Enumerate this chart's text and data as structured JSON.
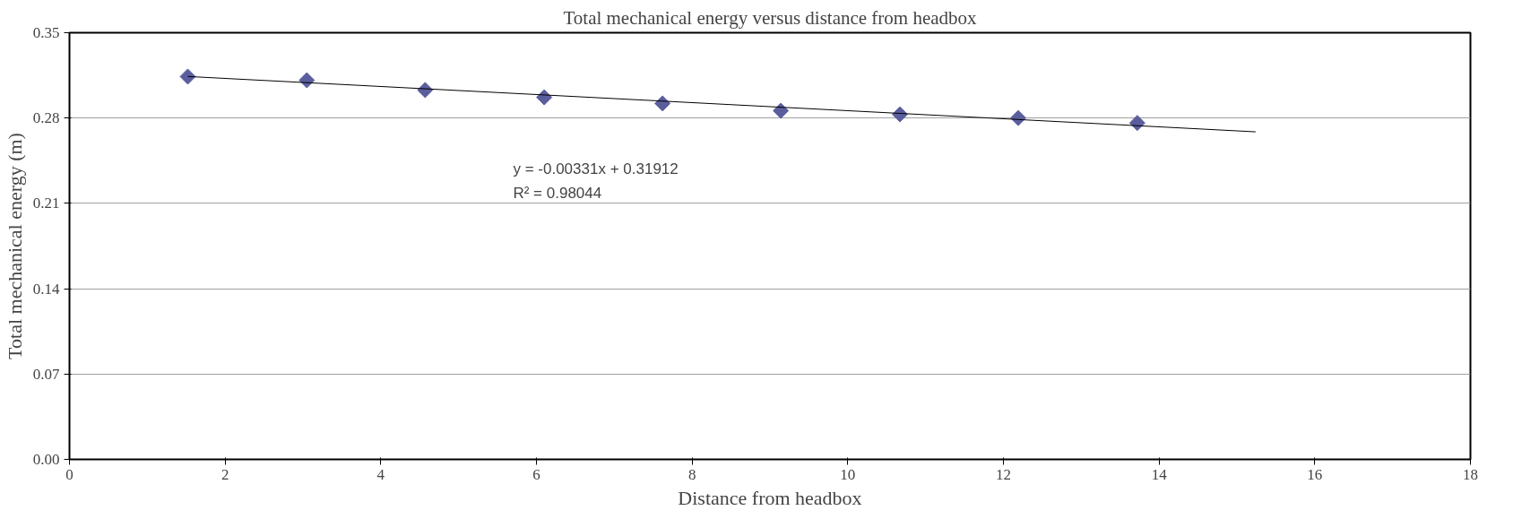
{
  "chart_data": {
    "type": "scatter",
    "title": "Total mechanical energy versus distance from headbox",
    "xlabel": "Distance from headbox",
    "ylabel": "Total mechanical energy (m)",
    "series": [
      {
        "color": "#5b5e9d",
        "marker": "diamond",
        "x": [
          1.52,
          3.05,
          4.57,
          6.1,
          7.62,
          9.14,
          10.67,
          12.19,
          13.72
        ],
        "values": [
          0.314,
          0.311,
          0.303,
          0.297,
          0.292,
          0.286,
          0.283,
          0.28,
          0.276
        ]
      },
      {
        "type": "line",
        "color": "#000000",
        "marker": "none",
        "x": [
          1.52,
          15.24
        ],
        "values": [
          0.3141,
          0.2687
        ]
      }
    ],
    "annotations": [
      "y = -0.00331x + 0.31912\nR² = 0.98044"
    ],
    "xlim": [
      0,
      18
    ],
    "xticks": [
      0,
      2,
      4,
      6,
      8,
      10,
      12,
      14,
      16,
      18
    ],
    "ylim": [
      0,
      0.35
    ],
    "yticks": [
      {
        "value": 0,
        "label": "0.00"
      },
      {
        "value": 0.07,
        "label": "0.07"
      },
      {
        "value": 0.14,
        "label": "0.14"
      },
      {
        "value": 0.21,
        "label": "0.21"
      },
      {
        "value": 0.28,
        "label": "0.28"
      },
      {
        "value": 0.35,
        "label": "0.35"
      }
    ],
    "grid": "y"
  }
}
